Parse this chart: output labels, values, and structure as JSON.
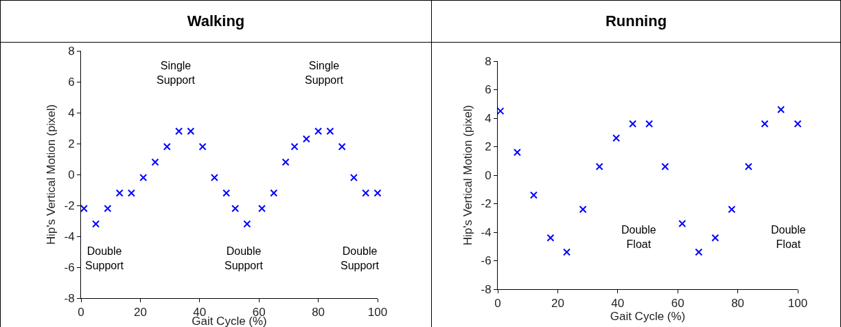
{
  "chart_data": [
    {
      "type": "scatter",
      "title": "Walking",
      "xlabel": "Gait Cycle (%)",
      "ylabel": "Hip's Vertical Motion (pixel)",
      "marker": "cross",
      "grid": false,
      "xlim": [
        0,
        100
      ],
      "xticks": [
        0,
        20,
        40,
        60,
        80,
        100
      ],
      "ylim": [
        -8,
        8
      ],
      "yticks": [
        -8,
        -6,
        -4,
        -2,
        0,
        2,
        4,
        6,
        8
      ],
      "x": [
        1,
        5,
        9,
        13,
        17,
        21,
        25,
        29,
        33,
        37,
        41,
        45,
        49,
        52,
        56,
        61,
        65,
        69,
        72,
        76,
        80,
        84,
        88,
        92,
        96,
        100
      ],
      "series": [
        {
          "color": "#0000ff",
          "values": [
            -2.2,
            -3.2,
            -2.2,
            -1.2,
            -1.2,
            -0.2,
            0.8,
            1.8,
            2.8,
            2.8,
            1.8,
            -0.2,
            -1.2,
            -2.2,
            -3.2,
            -2.2,
            -1.2,
            0.8,
            1.8,
            2.3,
            2.8,
            2.8,
            1.8,
            -0.2,
            -1.2,
            -1.2
          ]
        }
      ],
      "annotations": [
        "Single\nSupport",
        "Single\nSupport",
        "Double\nSupport",
        "Double\nSupport",
        "Double\nSupport"
      ]
    },
    {
      "type": "scatter",
      "title": "Running",
      "xlabel": "Gait Cycle (%)",
      "ylabel": "Hip's Vertical Motion (pixel)",
      "marker": "cross",
      "grid": false,
      "xlim": [
        0,
        100
      ],
      "xticks": [
        0,
        20,
        40,
        60,
        80,
        100
      ],
      "ylim": [
        -8,
        8
      ],
      "yticks": [
        -8,
        -6,
        -4,
        -2,
        0,
        2,
        4,
        6,
        8
      ],
      "x": [
        0.9,
        6.5,
        12,
        17.6,
        23,
        28.4,
        33.9,
        39.5,
        45,
        50.5,
        55.8,
        61.5,
        67,
        72.5,
        78,
        83.6,
        89,
        94.4,
        100
      ],
      "series": [
        {
          "color": "#0000ff",
          "values": [
            4.5,
            1.6,
            -1.4,
            -4.4,
            -5.4,
            -2.4,
            0.6,
            2.6,
            3.6,
            3.6,
            0.6,
            -3.4,
            -5.4,
            -4.4,
            -2.4,
            0.6,
            3.6,
            4.6,
            3.6
          ]
        }
      ],
      "annotations": [
        "Double\nFloat",
        "Double\nFloat"
      ]
    }
  ]
}
